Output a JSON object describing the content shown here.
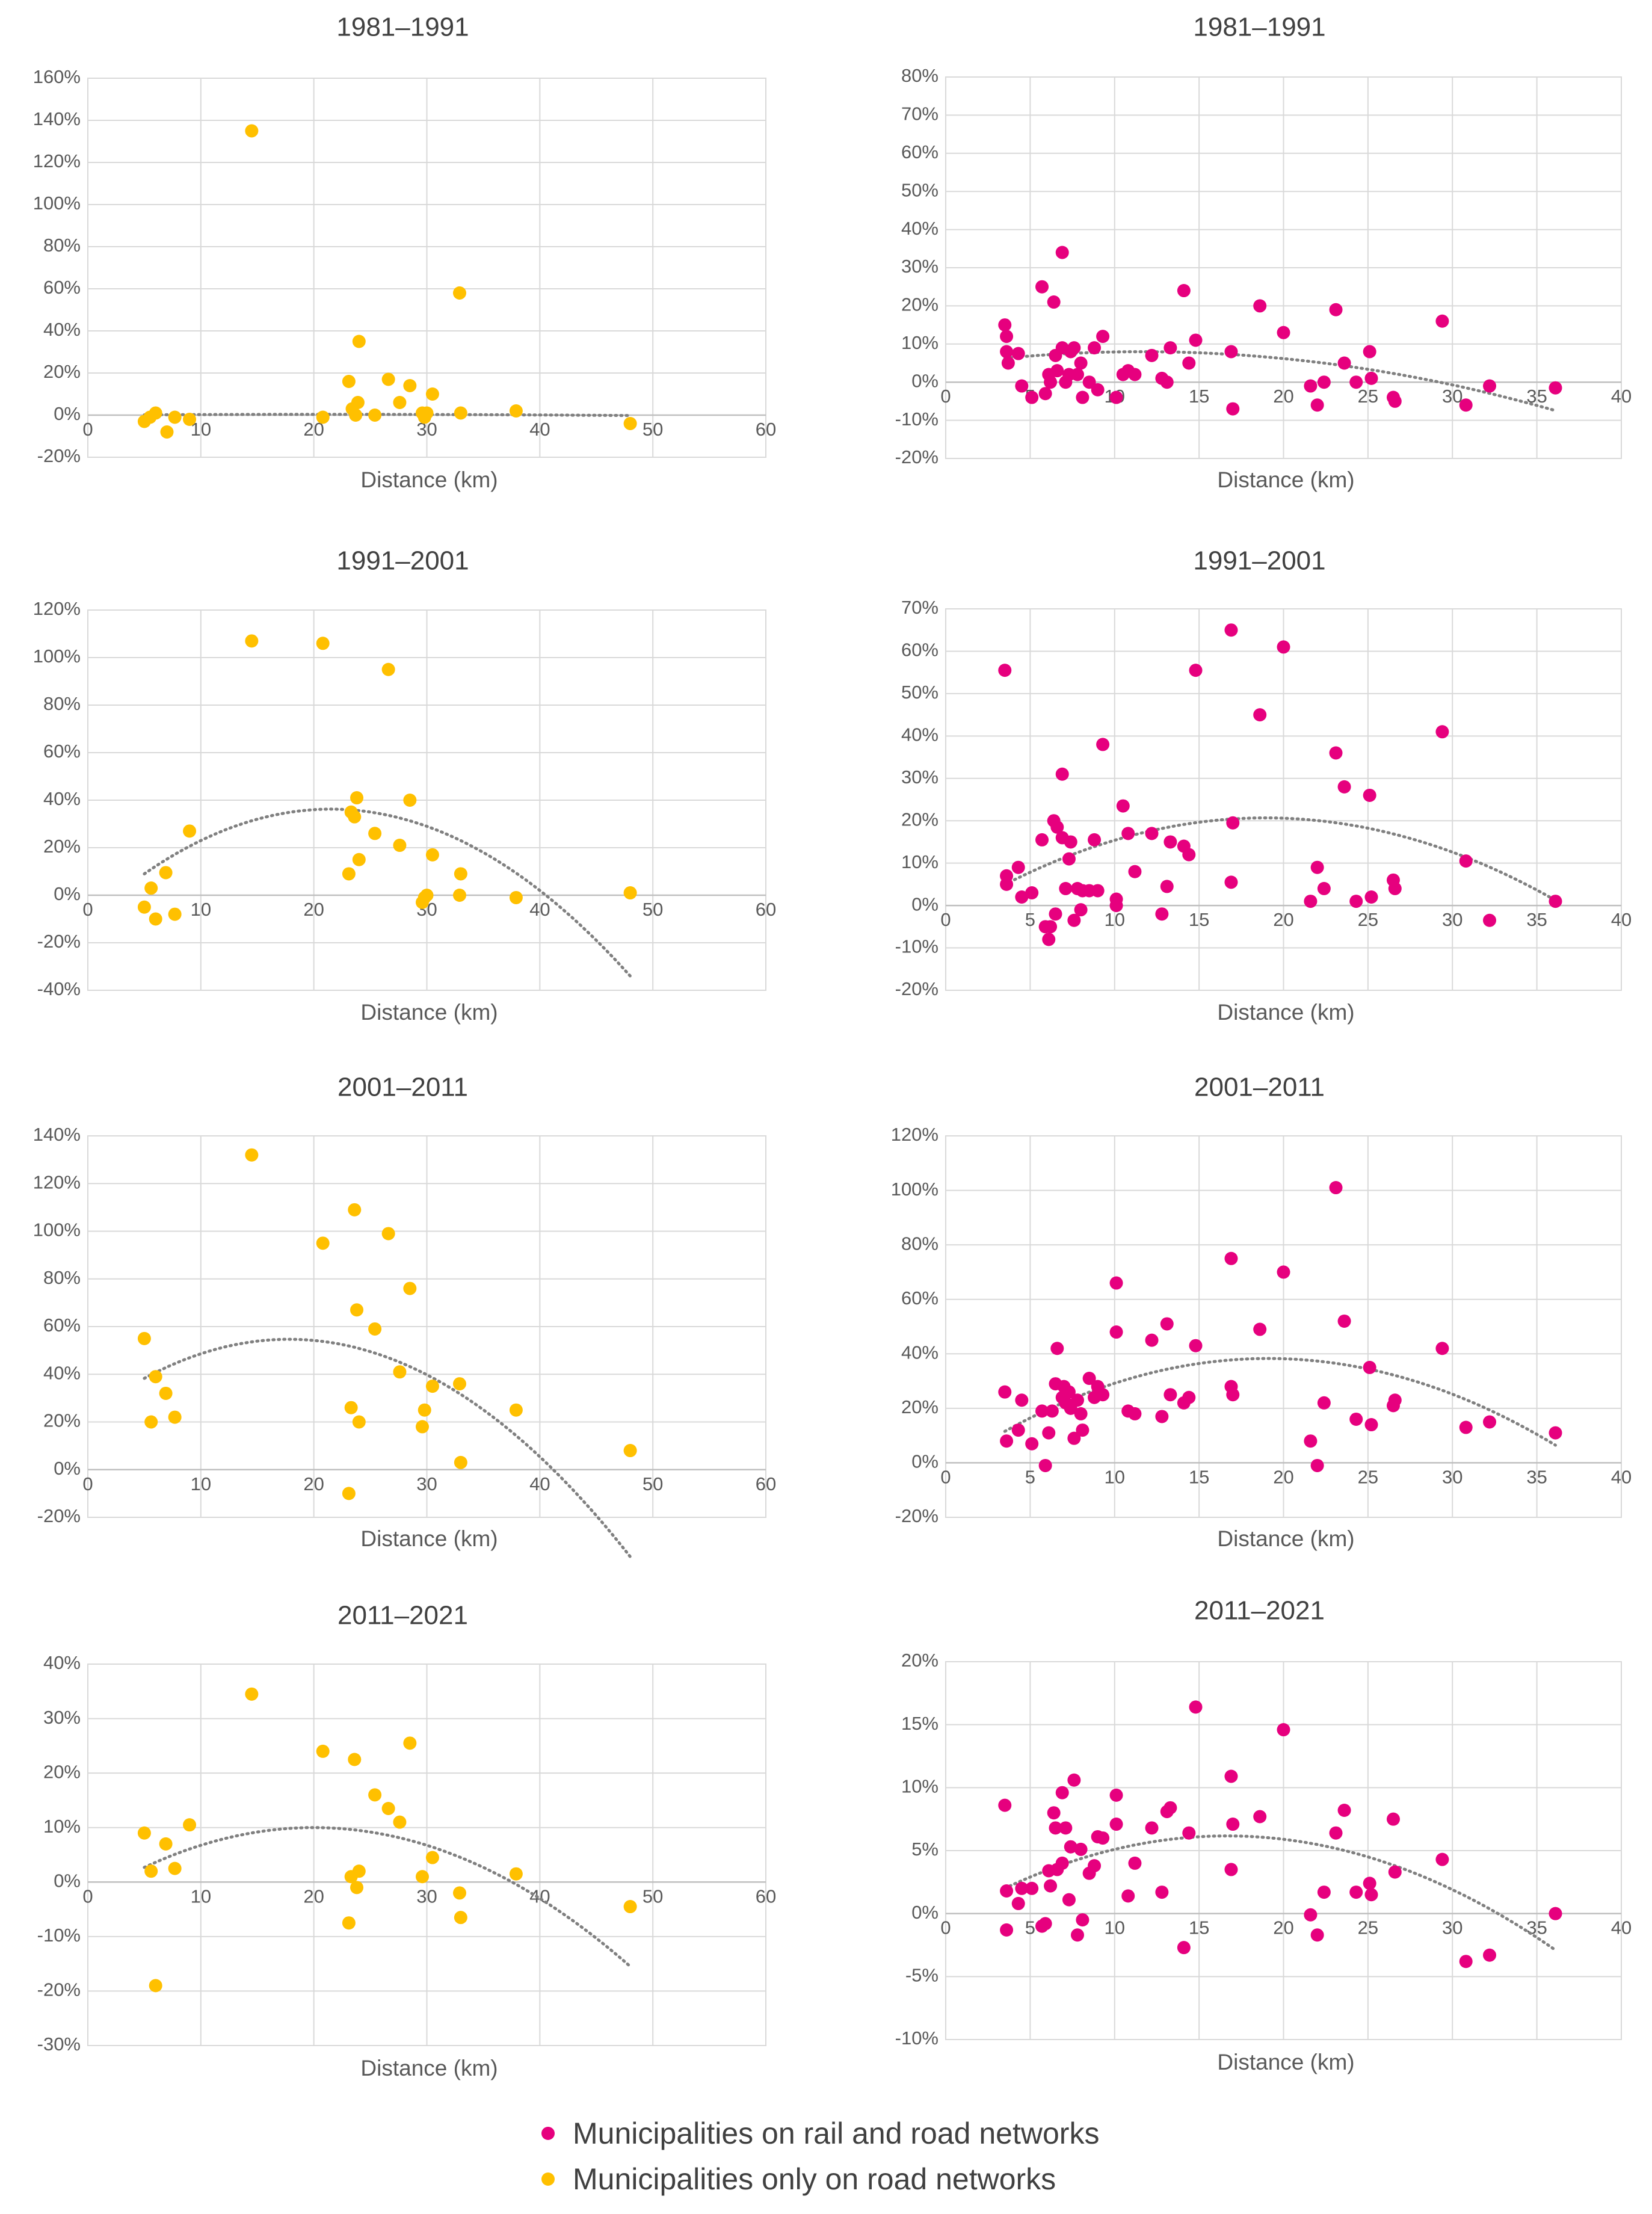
{
  "colors": {
    "rail": "#e6007e",
    "road": "#ffc000",
    "trend": "#808080"
  },
  "legend": {
    "rail_label": "Municipalities on rail and road networks",
    "road_label": "Municipalities only on road networks"
  },
  "chart_data": [
    {
      "type": "scatter",
      "group": "road",
      "title": "1981–1991",
      "xlabel": "Distance (km)",
      "xlim": [
        0,
        60
      ],
      "ylim": [
        -20,
        160
      ],
      "ystep": 20,
      "xticks": [
        0,
        10,
        20,
        30,
        40,
        50,
        60
      ],
      "x": [
        5,
        5.5,
        6,
        7,
        7.7,
        9,
        14.5,
        20.8,
        23.1,
        23.4,
        23.7,
        23.9,
        24,
        25.4,
        26.6,
        27.6,
        28.5,
        29.6,
        29.8,
        30,
        30.5,
        32.9,
        33,
        37.9,
        48
      ],
      "y": [
        -3,
        -1,
        1,
        -8,
        -1,
        -2,
        135,
        -1,
        16,
        3,
        0,
        6,
        35,
        0,
        17,
        6,
        14,
        1,
        -1,
        1,
        10,
        58,
        1,
        2,
        -4
      ],
      "trend": [
        0.0,
        0.03333,
        -0.000787
      ]
    },
    {
      "type": "scatter",
      "group": "rail",
      "title": "1981–1991",
      "xlabel": "Distance (km)",
      "xlim": [
        0,
        40
      ],
      "ylim": [
        -20,
        80
      ],
      "ystep": 10,
      "xticks": [
        0,
        5,
        10,
        15,
        20,
        25,
        30,
        35,
        40
      ],
      "x": [
        3.5,
        3.6,
        3.6,
        3.7,
        4.3,
        4.5,
        5.1,
        5.7,
        5.9,
        6.1,
        6.2,
        6.4,
        6.5,
        6.6,
        6.9,
        6.9,
        7.1,
        7.3,
        7.4,
        7.6,
        7.8,
        8.0,
        8.1,
        8.5,
        8.8,
        9.0,
        9.3,
        10.1,
        10.5,
        10.8,
        11.2,
        12.2,
        12.8,
        13.1,
        13.3,
        14.1,
        14.4,
        14.8,
        16.9,
        17.0,
        18.6,
        20.0,
        21.6,
        22.0,
        22.4,
        23.1,
        23.6,
        24.3,
        25.1,
        25.2,
        26.5,
        26.6,
        29.4,
        30.8,
        32.2,
        36.1
      ],
      "y": [
        15,
        12,
        8,
        5,
        7.5,
        -1,
        -4,
        25,
        -3,
        2,
        0,
        21,
        7,
        3,
        9,
        34,
        0,
        2,
        8,
        9,
        2,
        5,
        -4,
        0,
        9,
        -2,
        12,
        -4,
        2,
        3,
        2,
        7,
        1,
        0,
        9,
        24,
        5,
        11,
        8,
        -7,
        20,
        13,
        -1,
        -6,
        0,
        19,
        5,
        0,
        8,
        1,
        -4,
        -5,
        16,
        -6,
        -1,
        -1.5
      ],
      "trend": [
        4.5,
        0.6,
        -0.0258
      ]
    },
    {
      "type": "scatter",
      "group": "road",
      "title": "1991–2001",
      "xlabel": "Distance (km)",
      "xlim": [
        0,
        60
      ],
      "ylim": [
        -40,
        120
      ],
      "ystep": 20,
      "xticks": [
        0,
        10,
        20,
        30,
        40,
        50,
        60
      ],
      "x": [
        5,
        5.6,
        6,
        6.9,
        7.7,
        9,
        14.5,
        20.8,
        23.1,
        23.3,
        23.6,
        23.8,
        24,
        25.4,
        26.6,
        27.6,
        28.5,
        29.6,
        29.8,
        30,
        30.5,
        32.9,
        33,
        37.9,
        48
      ],
      "y": [
        -5,
        3,
        -10,
        9.5,
        -8,
        27,
        107,
        106,
        9,
        35,
        33,
        41,
        15,
        26,
        95,
        21,
        40,
        -3,
        -1,
        0,
        17,
        0,
        9,
        -1,
        1
      ],
      "trend": [
        -10,
        4.3,
        -0.1
      ]
    },
    {
      "type": "scatter",
      "group": "rail",
      "title": "1991–2001",
      "xlabel": "Distance (km)",
      "xlim": [
        0,
        40
      ],
      "ylim": [
        -20,
        70
      ],
      "ystep": 10,
      "xticks": [
        0,
        5,
        10,
        15,
        20,
        25,
        30,
        35,
        40
      ],
      "x": [
        3.5,
        3.6,
        3.6,
        4.3,
        4.5,
        5.1,
        5.7,
        5.9,
        6.1,
        6.2,
        6.4,
        6.5,
        6.6,
        6.9,
        6.9,
        7.1,
        7.3,
        7.4,
        7.6,
        7.8,
        8.0,
        8.1,
        8.5,
        8.8,
        9.0,
        9.3,
        10.1,
        10.1,
        10.5,
        10.8,
        11.2,
        12.2,
        12.8,
        13.1,
        13.3,
        14.1,
        14.4,
        14.8,
        16.9,
        17.0,
        16.9,
        18.6,
        20.0,
        21.6,
        22.0,
        22.4,
        23.1,
        23.6,
        24.3,
        25.1,
        25.2,
        26.5,
        26.6,
        29.4,
        30.8,
        32.2,
        36.1
      ],
      "y": [
        55.5,
        7,
        5,
        9,
        2,
        3,
        15.5,
        -5,
        -8,
        -5,
        20,
        -2,
        18.5,
        16,
        31,
        4,
        11,
        15,
        -3.5,
        4,
        -1,
        3.5,
        3.5,
        15.5,
        3.5,
        38,
        0,
        1.5,
        23.5,
        17,
        8,
        17,
        -2,
        4.5,
        15,
        14,
        12,
        55.5,
        65,
        19.5,
        5.5,
        45,
        61,
        1,
        9,
        4,
        36,
        28,
        1,
        26,
        2,
        6,
        4,
        41,
        10.5,
        -3.5,
        1
      ],
      "trend": [
        -3,
        2.5,
        -0.066
      ]
    },
    {
      "type": "scatter",
      "group": "road",
      "title": "2001–2011",
      "xlabel": "Distance (km)",
      "xlim": [
        0,
        60
      ],
      "ylim": [
        -20,
        140
      ],
      "ystep": 20,
      "xticks": [
        0,
        10,
        20,
        30,
        40,
        50,
        60
      ],
      "x": [
        5,
        5.6,
        6,
        6.9,
        7.7,
        14.5,
        20.8,
        23.1,
        23.3,
        23.6,
        23.8,
        24,
        25.4,
        26.6,
        27.6,
        28.5,
        29.6,
        29.8,
        30.5,
        32.9,
        33,
        37.9,
        48
      ],
      "y": [
        55,
        20,
        39,
        32,
        22,
        132,
        95,
        -10,
        26,
        109,
        67,
        20,
        59,
        99,
        41,
        76,
        18,
        25,
        35,
        36,
        3,
        25,
        8
      ],
      "trend": [
        23,
        3.56,
        -0.1
      ]
    },
    {
      "type": "scatter",
      "group": "rail",
      "title": "2001–2011",
      "xlabel": "Distance (km)",
      "xlim": [
        0,
        40
      ],
      "ylim": [
        -20,
        120
      ],
      "ystep": 20,
      "xticks": [
        0,
        5,
        10,
        15,
        20,
        25,
        30,
        35,
        40
      ],
      "x": [
        3.5,
        3.6,
        4.3,
        4.5,
        5.1,
        5.7,
        5.9,
        6.1,
        6.3,
        6.5,
        6.6,
        6.9,
        7.0,
        7.1,
        7.3,
        7.4,
        7.6,
        7.8,
        8.0,
        8.1,
        8.5,
        8.8,
        9.0,
        9.3,
        10.1,
        10.1,
        10.8,
        11.2,
        12.2,
        12.8,
        13.1,
        13.3,
        14.1,
        14.4,
        14.8,
        16.9,
        17.0,
        16.9,
        18.6,
        20.0,
        21.6,
        22.0,
        22.4,
        23.1,
        23.6,
        24.3,
        25.1,
        25.2,
        26.5,
        26.6,
        29.4,
        30.8,
        32.2,
        36.1
      ],
      "y": [
        26,
        8,
        12,
        23,
        7,
        19,
        -1,
        11,
        19,
        29,
        42,
        24,
        28,
        22,
        26,
        20,
        9,
        23,
        18,
        12,
        31,
        24,
        28,
        25,
        66,
        48,
        19,
        18,
        45,
        17,
        51,
        25,
        22,
        24,
        43,
        75,
        25,
        28,
        49,
        70,
        8,
        -1,
        22,
        101,
        52,
        16,
        35,
        14,
        21,
        23,
        42,
        13,
        15,
        11
      ],
      "trend": [
        -1.8,
        4.2,
        -0.11
      ]
    },
    {
      "type": "scatter",
      "group": "road",
      "title": "2011–2021",
      "xlabel": "Distance (km)",
      "xlim": [
        0,
        60
      ],
      "ylim": [
        -30,
        40
      ],
      "ystep": 10,
      "xticks": [
        0,
        10,
        20,
        30,
        40,
        50,
        60
      ],
      "x": [
        5,
        5.6,
        6,
        6.9,
        7.7,
        9,
        14.5,
        20.8,
        23.1,
        23.3,
        23.6,
        23.8,
        24,
        25.4,
        26.6,
        27.6,
        28.5,
        29.6,
        30.5,
        32.9,
        33,
        37.9,
        48
      ],
      "y": [
        9,
        2,
        -19,
        7,
        2.5,
        10.5,
        34.5,
        24,
        -7.5,
        1,
        22.5,
        -1,
        2,
        16,
        13.5,
        11,
        25.5,
        1,
        4.5,
        -2,
        -6.5,
        1.5,
        -4.5
      ],
      "trend": [
        -3,
        1.3,
        -0.0325
      ]
    },
    {
      "type": "scatter",
      "group": "rail",
      "title": "2011–2021",
      "xlabel": "Distance (km)",
      "xlim": [
        0,
        40
      ],
      "ylim": [
        -10,
        20
      ],
      "ystep": 5,
      "xticks": [
        0,
        5,
        10,
        15,
        20,
        25,
        30,
        35,
        40
      ],
      "x": [
        3.5,
        3.6,
        3.6,
        4.3,
        4.5,
        5.1,
        5.7,
        5.9,
        6.1,
        6.2,
        6.4,
        6.5,
        6.6,
        6.9,
        6.9,
        7.1,
        7.3,
        7.4,
        7.6,
        7.8,
        8.0,
        8.1,
        8.5,
        8.8,
        9.0,
        9.3,
        10.1,
        10.1,
        10.8,
        11.2,
        12.2,
        12.8,
        13.1,
        13.3,
        14.1,
        14.4,
        14.8,
        16.9,
        17.0,
        16.9,
        18.6,
        20.0,
        21.6,
        22.0,
        22.4,
        23.1,
        23.6,
        24.3,
        25.1,
        25.2,
        26.5,
        26.6,
        29.4,
        30.8,
        32.2,
        36.1
      ],
      "y": [
        8.6,
        1.8,
        -1.3,
        0.8,
        2,
        2,
        -1,
        -0.8,
        3.4,
        2.2,
        8,
        6.8,
        3.5,
        9.6,
        4,
        6.8,
        1.1,
        5.3,
        10.6,
        -1.7,
        5.1,
        -0.5,
        3.2,
        3.8,
        6.1,
        6,
        9.4,
        7.1,
        1.4,
        4,
        6.8,
        1.7,
        8.1,
        8.4,
        -2.7,
        6.4,
        16.4,
        10.9,
        7.1,
        3.5,
        7.7,
        14.6,
        -0.1,
        -1.7,
        1.7,
        6.4,
        8.2,
        1.7,
        2.4,
        1.5,
        7.5,
        3.3,
        4.3,
        -3.8,
        -3.3,
        0
      ],
      "trend": [
        -0.5,
        0.8,
        -0.024
      ]
    }
  ]
}
